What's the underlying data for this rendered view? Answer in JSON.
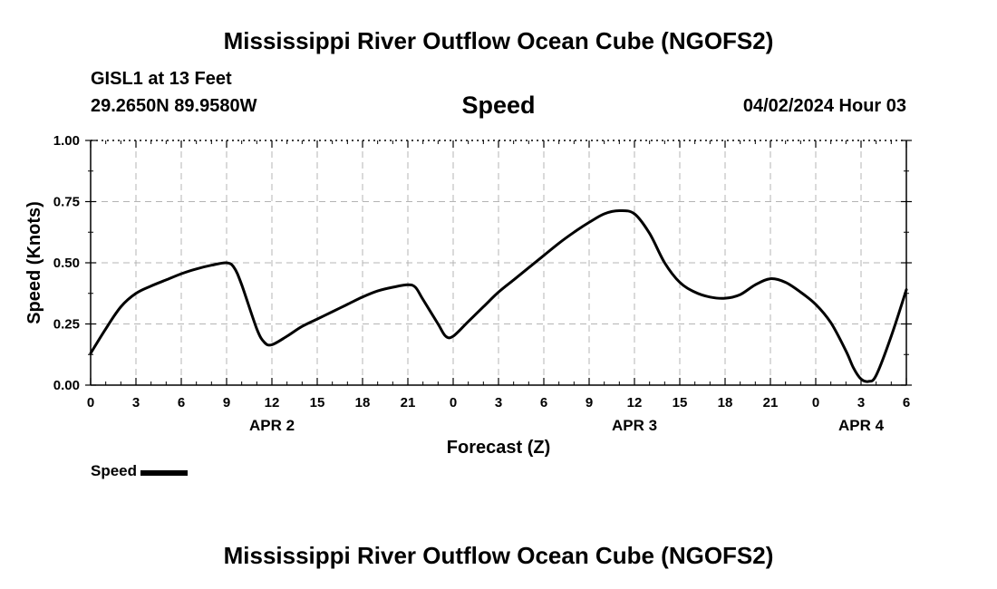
{
  "header": {
    "title": "Mississippi River Outflow Ocean Cube (NGOFS2)",
    "station": "GISL1 at 13 Feet",
    "coords": "29.2650N  89.9580W",
    "plot_title": "Speed",
    "datetime": "04/02/2024 Hour 03"
  },
  "footer": {
    "title": "Mississippi River Outflow Ocean Cube (NGOFS2)"
  },
  "legend": {
    "label": "Speed",
    "color": "#000000"
  },
  "chart_data": {
    "type": "line",
    "title": "Speed",
    "xlabel": "Forecast (Z)",
    "ylabel": "Speed (Knots)",
    "xlim": [
      0,
      54
    ],
    "ylim": [
      0,
      1
    ],
    "grid": true,
    "legend_position": "bottom-left",
    "x_tick_labels": [
      "0",
      "3",
      "6",
      "9",
      "12",
      "15",
      "18",
      "21",
      "0",
      "3",
      "6",
      "9",
      "12",
      "15",
      "18",
      "21",
      "0",
      "3",
      "6"
    ],
    "y_tick_labels": [
      "0.00",
      "0.25",
      "0.50",
      "0.75",
      "1.00"
    ],
    "day_labels": [
      {
        "label": "APR 2",
        "x": 12
      },
      {
        "label": "APR 3",
        "x": 36
      },
      {
        "label": "APR 4",
        "x": 51
      }
    ],
    "series": [
      {
        "name": "Speed",
        "color": "#000000",
        "x": [
          0,
          1,
          2,
          3,
          4,
          5,
          6,
          7,
          8,
          9,
          9.5,
          10,
          11,
          11.5,
          12,
          13,
          14,
          15,
          16,
          17,
          18,
          19,
          20,
          21,
          21.5,
          22,
          23,
          23.5,
          24,
          25,
          26,
          27,
          28,
          29,
          30,
          31,
          32,
          33,
          34,
          35,
          36,
          37,
          38,
          39,
          40,
          41,
          42,
          43,
          44,
          45,
          46,
          47,
          48,
          49,
          50,
          50.5,
          51,
          51.5,
          52,
          53,
          54
        ],
        "y": [
          0.13,
          0.23,
          0.32,
          0.375,
          0.405,
          0.43,
          0.455,
          0.475,
          0.49,
          0.5,
          0.48,
          0.41,
          0.23,
          0.175,
          0.165,
          0.2,
          0.24,
          0.27,
          0.3,
          0.33,
          0.36,
          0.385,
          0.4,
          0.41,
          0.4,
          0.35,
          0.25,
          0.2,
          0.2,
          0.26,
          0.32,
          0.38,
          0.43,
          0.48,
          0.53,
          0.58,
          0.625,
          0.665,
          0.7,
          0.713,
          0.7,
          0.62,
          0.5,
          0.42,
          0.38,
          0.36,
          0.355,
          0.37,
          0.41,
          0.435,
          0.42,
          0.38,
          0.33,
          0.255,
          0.14,
          0.07,
          0.025,
          0.015,
          0.04,
          0.2,
          0.39
        ]
      }
    ]
  }
}
